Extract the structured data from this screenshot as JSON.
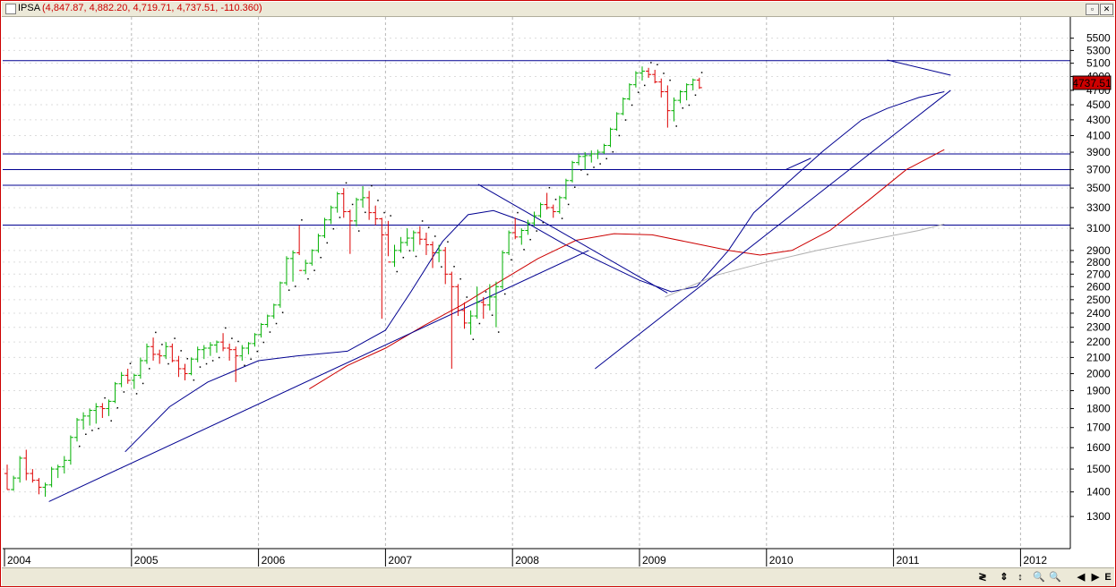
{
  "window": {
    "ticker": "IPSA",
    "values_text": "(4,847.87, 4,882.20, 4,719.71, 4,737.51, -110.360)",
    "restore_icon": "restore-icon",
    "close_icon": "close-icon"
  },
  "price_badge": "4737.51",
  "statusbar": {
    "buttons": [
      "≷",
      "⇕",
      "↕",
      "🔍",
      "🔍",
      "◀",
      "▶",
      "E"
    ]
  },
  "chart_data": {
    "type": "ohlc",
    "title": "IPSA",
    "scale": "log",
    "ylim": [
      1180,
      5800
    ],
    "y_ticks": [
      1300,
      1400,
      1500,
      1600,
      1700,
      1800,
      1900,
      2000,
      2100,
      2200,
      2300,
      2400,
      2500,
      2600,
      2700,
      2800,
      2900,
      3100,
      3300,
      3500,
      3700,
      3900,
      4100,
      4300,
      4500,
      4700,
      4900,
      5100,
      5300,
      5500
    ],
    "x_ticks": [
      "2004",
      "2005",
      "2006",
      "2007",
      "2008",
      "2009",
      "2010",
      "2011",
      "2012"
    ],
    "x_range": [
      2004.0,
      2012.4
    ],
    "grid": true,
    "last": {
      "open": 4847.87,
      "high": 4882.2,
      "low": 4719.71,
      "close": 4737.51,
      "change": -110.36
    },
    "bars": [
      [
        1480,
        1520,
        1410,
        1410
      ],
      [
        1410,
        1470,
        1405,
        1460
      ],
      [
        1460,
        1560,
        1440,
        1550
      ],
      [
        1550,
        1590,
        1450,
        1480
      ],
      [
        1480,
        1500,
        1440,
        1450
      ],
      [
        1450,
        1460,
        1390,
        1420
      ],
      [
        1420,
        1440,
        1380,
        1430
      ],
      [
        1430,
        1510,
        1420,
        1500
      ],
      [
        1500,
        1520,
        1460,
        1510
      ],
      [
        1510,
        1560,
        1480,
        1540
      ],
      [
        1540,
        1660,
        1520,
        1650
      ],
      [
        1650,
        1750,
        1630,
        1740
      ],
      [
        1740,
        1780,
        1690,
        1760
      ],
      [
        1760,
        1800,
        1710,
        1790
      ],
      [
        1790,
        1830,
        1720,
        1810
      ],
      [
        1810,
        1830,
        1750,
        1800
      ],
      [
        1800,
        1850,
        1760,
        1840
      ],
      [
        1840,
        1950,
        1830,
        1940
      ],
      [
        1940,
        2010,
        1920,
        1990
      ],
      [
        1990,
        2030,
        1940,
        1960
      ],
      [
        1960,
        2000,
        1910,
        1990
      ],
      [
        1990,
        2100,
        1970,
        2080
      ],
      [
        2080,
        2190,
        2060,
        2170
      ],
      [
        2170,
        2230,
        2080,
        2120
      ],
      [
        2120,
        2150,
        2060,
        2110
      ],
      [
        2110,
        2200,
        2090,
        2170
      ],
      [
        2170,
        2190,
        2070,
        2080
      ],
      [
        2080,
        2110,
        1980,
        2030
      ],
      [
        2030,
        2060,
        1960,
        2000
      ],
      [
        2000,
        2100,
        1990,
        2090
      ],
      [
        2090,
        2170,
        2070,
        2150
      ],
      [
        2150,
        2180,
        2090,
        2160
      ],
      [
        2160,
        2200,
        2110,
        2180
      ],
      [
        2180,
        2210,
        2130,
        2200
      ],
      [
        2200,
        2260,
        2140,
        2160
      ],
      [
        2160,
        2190,
        2080,
        2150
      ],
      [
        2150,
        2170,
        1950,
        2110
      ],
      [
        2110,
        2180,
        2080,
        2160
      ],
      [
        2160,
        2200,
        2120,
        2190
      ],
      [
        2190,
        2260,
        2170,
        2250
      ],
      [
        2250,
        2330,
        2230,
        2320
      ],
      [
        2320,
        2390,
        2300,
        2380
      ],
      [
        2380,
        2470,
        2360,
        2460
      ],
      [
        2460,
        2640,
        2440,
        2630
      ],
      [
        2630,
        2850,
        2610,
        2830
      ],
      [
        2830,
        2900,
        2640,
        2880
      ],
      [
        2880,
        3130,
        2860,
        2730
      ],
      [
        2730,
        2820,
        2700,
        2790
      ],
      [
        2790,
        2910,
        2770,
        2900
      ],
      [
        2900,
        3050,
        2880,
        3030
      ],
      [
        3030,
        3200,
        3010,
        3180
      ],
      [
        3180,
        3320,
        3140,
        3300
      ],
      [
        3300,
        3460,
        3250,
        3440
      ],
      [
        3440,
        3500,
        3200,
        3260
      ],
      [
        3260,
        3280,
        2870,
        3170
      ],
      [
        3170,
        3400,
        3120,
        3380
      ],
      [
        3380,
        3520,
        3300,
        3400
      ],
      [
        3400,
        3470,
        3180,
        3250
      ],
      [
        3250,
        3320,
        3130,
        3190
      ],
      [
        3190,
        3200,
        2360,
        3040
      ],
      [
        3040,
        3170,
        2850,
        2800
      ],
      [
        2800,
        2950,
        2760,
        2900
      ],
      [
        2900,
        3020,
        2880,
        2970
      ],
      [
        2970,
        3100,
        2940,
        3010
      ],
      [
        3010,
        3080,
        2890,
        3060
      ],
      [
        3060,
        3120,
        2950,
        3000
      ],
      [
        3000,
        3060,
        2860,
        2950
      ],
      [
        2950,
        2980,
        2750,
        2880
      ],
      [
        2880,
        2950,
        2800,
        2900
      ],
      [
        2900,
        2930,
        2620,
        2700
      ],
      [
        2700,
        2720,
        2030,
        2600
      ],
      [
        2600,
        2620,
        2380,
        2420
      ],
      [
        2420,
        2480,
        2290,
        2330
      ],
      [
        2330,
        2420,
        2250,
        2380
      ],
      [
        2380,
        2600,
        2360,
        2480
      ],
      [
        2480,
        2520,
        2360,
        2460
      ],
      [
        2460,
        2620,
        2420,
        2520
      ],
      [
        2520,
        2640,
        2300,
        2600
      ],
      [
        2600,
        2900,
        2580,
        2880
      ],
      [
        2880,
        3080,
        2860,
        3060
      ],
      [
        3060,
        3200,
        3000,
        3020
      ],
      [
        3020,
        3100,
        2950,
        3080
      ],
      [
        3080,
        3180,
        3040,
        3150
      ],
      [
        3150,
        3260,
        3120,
        3220
      ],
      [
        3220,
        3350,
        3200,
        3330
      ],
      [
        3330,
        3450,
        3280,
        3300
      ],
      [
        3300,
        3330,
        3200,
        3260
      ],
      [
        3260,
        3420,
        3240,
        3400
      ],
      [
        3400,
        3600,
        3380,
        3580
      ],
      [
        3580,
        3800,
        3560,
        3780
      ],
      [
        3780,
        3880,
        3750,
        3850
      ],
      [
        3850,
        3900,
        3700,
        3860
      ],
      [
        3860,
        3920,
        3780,
        3880
      ],
      [
        3880,
        3930,
        3820,
        3900
      ],
      [
        3900,
        4000,
        3880,
        3980
      ],
      [
        3980,
        4200,
        3960,
        4180
      ],
      [
        4180,
        4400,
        4160,
        4380
      ],
      [
        4380,
        4600,
        4360,
        4580
      ],
      [
        4580,
        4800,
        4560,
        4780
      ],
      [
        4780,
        4980,
        4740,
        4950
      ],
      [
        4950,
        5050,
        4840,
        4980
      ],
      [
        4980,
        5030,
        4880,
        4930
      ],
      [
        4930,
        5000,
        4800,
        4820
      ],
      [
        4820,
        4870,
        4600,
        4680
      ],
      [
        4680,
        4770,
        4200,
        4420
      ],
      [
        4420,
        4600,
        4280,
        4560
      ],
      [
        4560,
        4700,
        4520,
        4680
      ],
      [
        4680,
        4800,
        4560,
        4780
      ],
      [
        4780,
        4870,
        4700,
        4850
      ],
      [
        4848,
        4882,
        4720,
        4738
      ]
    ],
    "series": [
      {
        "name": "",
        "color": "#000090",
        "values": [
          [
            2004.95,
            1580
          ],
          [
            2005.3,
            1810
          ],
          [
            2005.6,
            1950
          ],
          [
            2006.0,
            2080
          ],
          [
            2006.3,
            2110
          ],
          [
            2006.7,
            2140
          ],
          [
            2007.0,
            2280
          ],
          [
            2007.2,
            2560
          ],
          [
            2007.45,
            2980
          ],
          [
            2007.65,
            3230
          ],
          [
            2007.85,
            3270
          ],
          [
            2008.1,
            3160
          ],
          [
            2008.4,
            2960
          ],
          [
            2008.7,
            2800
          ],
          [
            2009.0,
            2650
          ],
          [
            2009.25,
            2560
          ],
          [
            2009.45,
            2600
          ],
          [
            2009.7,
            2900
          ],
          [
            2009.9,
            3250
          ],
          [
            2010.2,
            3600
          ],
          [
            2010.45,
            3920
          ],
          [
            2010.75,
            4300
          ],
          [
            2010.95,
            4450
          ],
          [
            2011.2,
            4600
          ],
          [
            2011.4,
            4680
          ]
        ]
      },
      {
        "name": "",
        "color": "#cc0000",
        "values": [
          [
            2006.4,
            1910
          ],
          [
            2006.7,
            2050
          ],
          [
            2007.0,
            2160
          ],
          [
            2007.3,
            2310
          ],
          [
            2007.6,
            2460
          ],
          [
            2007.9,
            2640
          ],
          [
            2008.2,
            2830
          ],
          [
            2008.5,
            2990
          ],
          [
            2008.8,
            3050
          ],
          [
            2009.1,
            3040
          ],
          [
            2009.4,
            2970
          ],
          [
            2009.7,
            2900
          ],
          [
            2009.95,
            2860
          ],
          [
            2010.2,
            2900
          ],
          [
            2010.5,
            3080
          ],
          [
            2010.8,
            3370
          ],
          [
            2011.1,
            3700
          ],
          [
            2011.4,
            3930
          ]
        ]
      },
      {
        "name": "",
        "color": "#b0b0b0",
        "values": [
          [
            2009.2,
            2520
          ],
          [
            2009.6,
            2690
          ],
          [
            2010.0,
            2800
          ],
          [
            2010.4,
            2900
          ],
          [
            2010.8,
            2990
          ],
          [
            2011.2,
            3080
          ],
          [
            2011.4,
            3140
          ]
        ]
      }
    ],
    "horizontal_levels": [
      5140,
      3880,
      3700,
      3530,
      3130
    ],
    "trendlines": [
      {
        "color": "#000090",
        "points": [
          [
            2004.35,
            1360
          ],
          [
            2008.6,
            2900
          ]
        ]
      },
      {
        "color": "#000090",
        "points": [
          [
            2007.73,
            3540
          ],
          [
            2009.22,
            2550
          ]
        ]
      },
      {
        "color": "#000090",
        "points": [
          [
            2008.65,
            2030
          ],
          [
            2011.45,
            4700
          ]
        ]
      },
      {
        "color": "#000090",
        "points": [
          [
            2010.95,
            5150
          ],
          [
            2011.45,
            4920
          ]
        ]
      },
      {
        "color": "#000090",
        "points": [
          [
            2010.15,
            3700
          ],
          [
            2010.35,
            3830
          ]
        ]
      }
    ]
  }
}
